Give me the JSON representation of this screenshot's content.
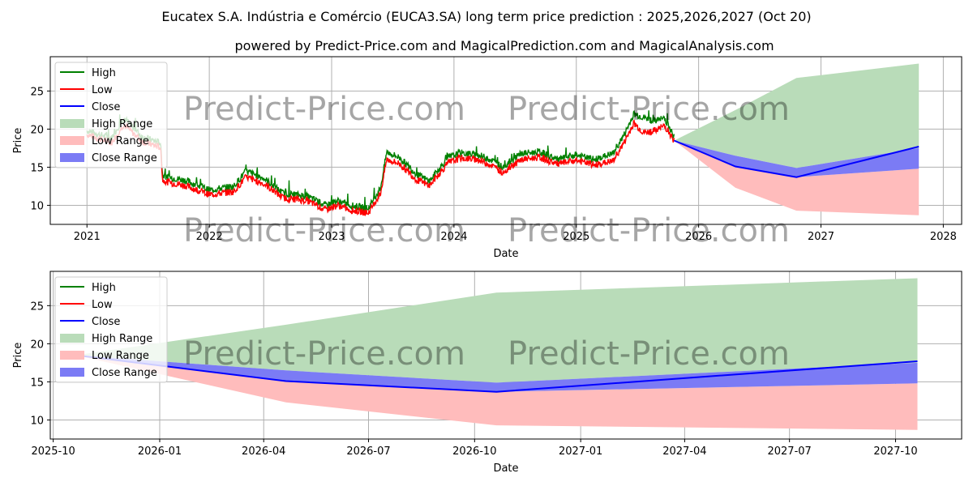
{
  "title": "Eucatex S.A. Indústria e Comércio (EUCA3.SA) long term price prediction : 2025,2026,2027 (Oct 20)",
  "subtitle": "powered by Predict-Price.com and MagicalPrediction.com and MagicalAnalysis.com",
  "watermark": "Predict-Price.com",
  "colors": {
    "high": "#008000",
    "low": "#ff0000",
    "close": "#0000ff",
    "high_range": "#b9dcb9",
    "low_range": "#ffbcbc",
    "close_range": "#7b7bf5"
  },
  "legend": [
    {
      "key": "high",
      "label": "High"
    },
    {
      "key": "low",
      "label": "Low"
    },
    {
      "key": "close",
      "label": "Close"
    },
    {
      "key": "high_range",
      "label": "High Range"
    },
    {
      "key": "low_range",
      "label": "Low Range"
    },
    {
      "key": "close_range",
      "label": "Close Range"
    }
  ],
  "chart_data": [
    {
      "type": "line",
      "xlabel": "Date",
      "ylabel": "Price",
      "xlim": [
        2020.7,
        2028.15
      ],
      "ylim": [
        7.5,
        29.5
      ],
      "xticks": [
        {
          "v": 2021,
          "label": "2021"
        },
        {
          "v": 2022,
          "label": "2022"
        },
        {
          "v": 2023,
          "label": "2023"
        },
        {
          "v": 2024,
          "label": "2024"
        },
        {
          "v": 2025,
          "label": "2025"
        },
        {
          "v": 2026,
          "label": "2026"
        },
        {
          "v": 2027,
          "label": "2027"
        },
        {
          "v": 2028,
          "label": "2028"
        }
      ],
      "yticks": [
        10,
        15,
        20,
        25
      ],
      "legend_position": "upper-left",
      "history": {
        "x": [
          2021.0,
          2021.2,
          2021.3,
          2021.45,
          2021.6,
          2021.62,
          2021.8,
          2022.0,
          2022.2,
          2022.3,
          2022.45,
          2022.6,
          2022.8,
          2022.95,
          2023.05,
          2023.15,
          2023.3,
          2023.4,
          2023.45,
          2023.55,
          2023.7,
          2023.8,
          2023.95,
          2024.05,
          2024.2,
          2024.3,
          2024.4,
          2024.55,
          2024.7,
          2024.85,
          2025.0,
          2025.15,
          2025.3,
          2025.4,
          2025.47,
          2025.55,
          2025.65,
          2025.72,
          2025.8
        ],
        "high": [
          19.8,
          18.8,
          21.5,
          19.0,
          18.2,
          13.8,
          13.3,
          12.0,
          12.5,
          14.5,
          13.5,
          11.6,
          11.2,
          10.0,
          10.6,
          10.0,
          9.6,
          12.3,
          17.0,
          16.3,
          14.0,
          13.2,
          16.2,
          16.9,
          16.6,
          16.0,
          15.0,
          16.8,
          17.0,
          16.0,
          16.6,
          16.0,
          16.8,
          19.5,
          22.0,
          21.5,
          21.0,
          21.5,
          19.0
        ],
        "low": [
          19.3,
          18.2,
          20.6,
          18.4,
          17.6,
          13.2,
          12.6,
          11.4,
          11.8,
          13.7,
          12.8,
          11.0,
          10.6,
          9.4,
          10.0,
          9.4,
          9.0,
          11.6,
          16.0,
          15.5,
          13.3,
          12.6,
          15.5,
          16.2,
          16.0,
          15.3,
          14.3,
          16.0,
          16.3,
          15.4,
          15.9,
          15.3,
          15.8,
          18.5,
          20.8,
          19.5,
          19.8,
          20.5,
          18.5
        ]
      },
      "forecast": {
        "x": [
          2025.8,
          2026.3,
          2026.8,
          2027.8
        ],
        "close": [
          18.5,
          15.1,
          13.7,
          17.7
        ],
        "close_high": [
          18.5,
          16.5,
          14.9,
          17.5
        ],
        "close_low": [
          18.5,
          15.0,
          13.7,
          14.8
        ],
        "high_high": [
          18.5,
          22.5,
          26.7,
          28.6
        ],
        "low_low": [
          18.5,
          12.3,
          9.3,
          8.7
        ]
      }
    },
    {
      "type": "line",
      "xlabel": "Date",
      "ylabel": "Price",
      "xlim": [
        2025.74,
        2027.905
      ],
      "ylim": [
        7.5,
        29.5
      ],
      "xticks": [
        {
          "v": 2025.747,
          "label": "2025-10"
        },
        {
          "v": 2026.0,
          "label": "2026-01"
        },
        {
          "v": 2026.247,
          "label": "2026-04"
        },
        {
          "v": 2026.496,
          "label": "2026-07"
        },
        {
          "v": 2026.748,
          "label": "2026-10"
        },
        {
          "v": 2027.0,
          "label": "2027-01"
        },
        {
          "v": 2027.247,
          "label": "2027-04"
        },
        {
          "v": 2027.496,
          "label": "2027-07"
        },
        {
          "v": 2027.748,
          "label": "2027-10"
        }
      ],
      "yticks": [
        10,
        15,
        20,
        25
      ],
      "legend_position": "upper-left",
      "forecast": {
        "x": [
          2025.8,
          2026.3,
          2026.8,
          2027.8
        ],
        "close": [
          18.5,
          15.1,
          13.7,
          17.7
        ],
        "close_high": [
          18.5,
          16.5,
          14.9,
          17.5
        ],
        "close_low": [
          18.5,
          15.0,
          13.7,
          14.8
        ],
        "high_high": [
          18.5,
          22.5,
          26.7,
          28.6
        ],
        "low_low": [
          18.5,
          12.3,
          9.3,
          8.7
        ]
      }
    }
  ]
}
